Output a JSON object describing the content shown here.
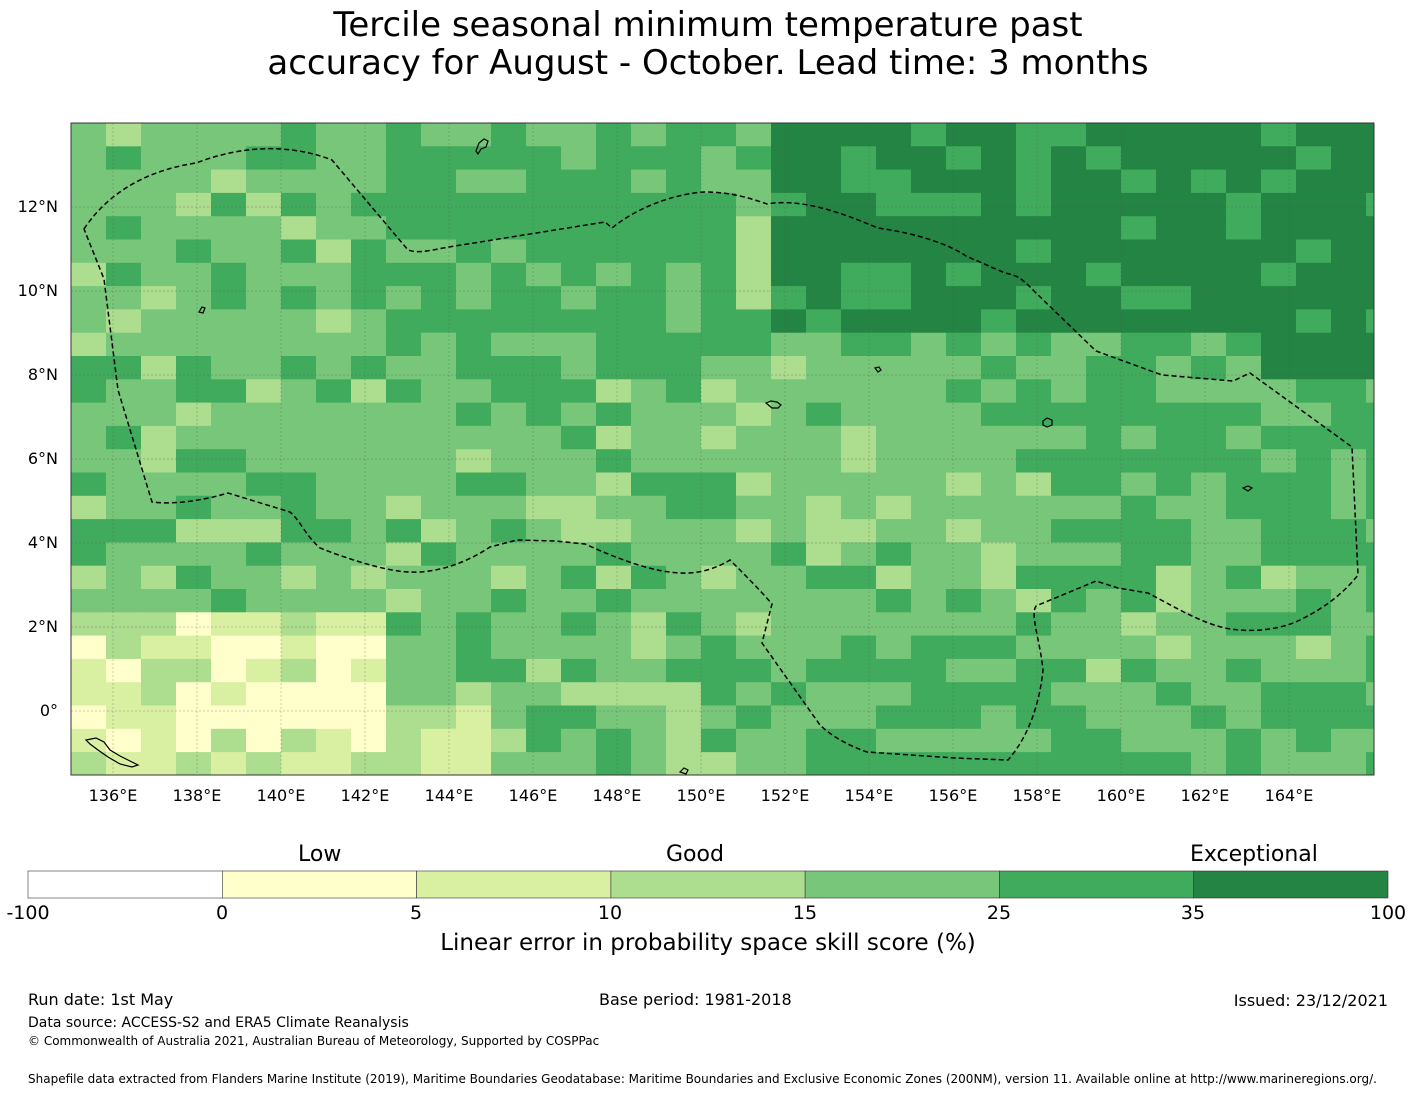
{
  "title": {
    "line1": "Tercile seasonal minimum temperature past",
    "line2": "accuracy for August - October. Lead time: 3 months"
  },
  "map": {
    "lat_labels": [
      "12°N",
      "10°N",
      "8°N",
      "6°N",
      "4°N",
      "2°N",
      "0°"
    ],
    "lon_labels": [
      "136°E",
      "138°E",
      "140°E",
      "142°E",
      "144°E",
      "146°E",
      "148°E",
      "150°E",
      "152°E",
      "154°E",
      "156°E",
      "158°E",
      "160°E",
      "162°E",
      "164°E"
    ],
    "eez_boundary": "dashed"
  },
  "colorbar": {
    "category_labels": [
      "Low",
      "Good",
      "Exceptional"
    ],
    "ticks": [
      "-100",
      "0",
      "5",
      "10",
      "15",
      "25",
      "35",
      "100"
    ],
    "bins": [
      {
        "from": -100,
        "to": 0,
        "color": "#ffffff"
      },
      {
        "from": 0,
        "to": 5,
        "color": "#ffffcc"
      },
      {
        "from": 5,
        "to": 10,
        "color": "#d9f0a3"
      },
      {
        "from": 10,
        "to": 15,
        "color": "#addd8e"
      },
      {
        "from": 15,
        "to": 25,
        "color": "#78c679"
      },
      {
        "from": 25,
        "to": 35,
        "color": "#41ab5d"
      },
      {
        "from": 35,
        "to": 100,
        "color": "#238443"
      }
    ],
    "title": "Linear error in probability space skill score (%)"
  },
  "footer": {
    "run_date": "Run date: 1st May",
    "base_period": "Base period: 1981-2018",
    "issued": "Issued: 23/12/2021",
    "data_source": "Data source: ACCESS-S2 and ERA5 Climate Reanalysis",
    "copyright": "© Commonwealth of Australia 2021, Australian Bureau of Meteorology, Supported by COSPPac",
    "shapefile": "Shapefile data extracted from Flanders Marine Institute (2019), Maritime Boundaries Geodatabase: Maritime Boundaries and Exclusive Economic Zones (200NM), version 11. Available online at http://www.marineregions.org/."
  }
}
